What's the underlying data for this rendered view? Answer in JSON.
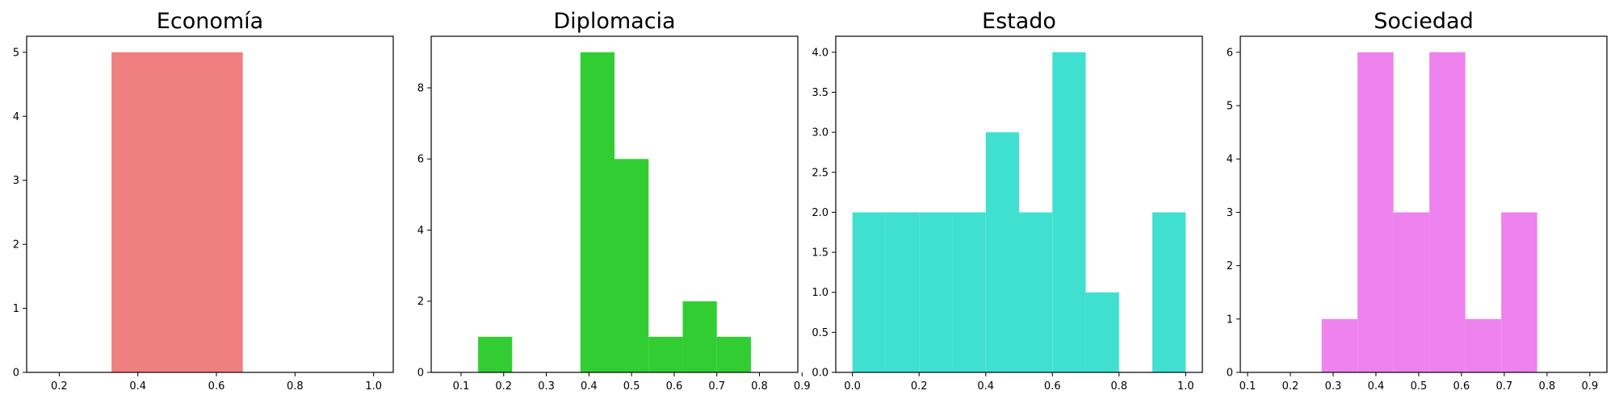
{
  "chart_data": [
    {
      "type": "bar",
      "title": "Economía",
      "color": "#F08080",
      "bins": [
        {
          "x0": 0.333,
          "x1": 0.667,
          "count": 5
        }
      ],
      "xlim": [
        0.117,
        1.05
      ],
      "ylim": [
        0,
        5.25
      ],
      "xticks": [
        0.2,
        0.4,
        0.6,
        0.8,
        1.0
      ],
      "xtick_labels": [
        "0.2",
        "0.4",
        "0.6",
        "0.8",
        "1.0"
      ],
      "yticks": [
        0,
        1,
        2,
        3,
        4,
        5
      ],
      "ytick_labels": [
        "0",
        "1",
        "2",
        "3",
        "4",
        "5"
      ]
    },
    {
      "type": "bar",
      "title": "Diplomacia",
      "color": "#32CD32",
      "bins": [
        {
          "x0": 0.14,
          "x1": 0.22,
          "count": 1
        },
        {
          "x0": 0.38,
          "x1": 0.46,
          "count": 9
        },
        {
          "x0": 0.46,
          "x1": 0.54,
          "count": 6
        },
        {
          "x0": 0.54,
          "x1": 0.62,
          "count": 1
        },
        {
          "x0": 0.62,
          "x1": 0.7,
          "count": 2
        },
        {
          "x0": 0.7,
          "x1": 0.78,
          "count": 1
        }
      ],
      "xlim": [
        0.03,
        0.89
      ],
      "ylim": [
        0,
        9.45
      ],
      "xticks": [
        0.1,
        0.2,
        0.3,
        0.4,
        0.5,
        0.6,
        0.7,
        0.8,
        0.9
      ],
      "xtick_labels": [
        "0.1",
        "0.2",
        "0.3",
        "0.4",
        "0.5",
        "0.6",
        "0.7",
        "0.8",
        "0.9"
      ],
      "yticks": [
        0,
        2,
        4,
        6,
        8
      ],
      "ytick_labels": [
        "0",
        "2",
        "4",
        "6",
        "8"
      ]
    },
    {
      "type": "bar",
      "title": "Estado",
      "color": "#40E0D0",
      "bins": [
        {
          "x0": 0.0,
          "x1": 0.1,
          "count": 2
        },
        {
          "x0": 0.1,
          "x1": 0.2,
          "count": 2
        },
        {
          "x0": 0.2,
          "x1": 0.3,
          "count": 2
        },
        {
          "x0": 0.3,
          "x1": 0.4,
          "count": 2
        },
        {
          "x0": 0.4,
          "x1": 0.5,
          "count": 3
        },
        {
          "x0": 0.5,
          "x1": 0.6,
          "count": 2
        },
        {
          "x0": 0.6,
          "x1": 0.7,
          "count": 4
        },
        {
          "x0": 0.7,
          "x1": 0.8,
          "count": 1
        },
        {
          "x0": 0.9,
          "x1": 1.0,
          "count": 2
        }
      ],
      "xlim": [
        -0.05,
        1.05
      ],
      "ylim": [
        0,
        4.2
      ],
      "xticks": [
        0.0,
        0.2,
        0.4,
        0.6,
        0.8,
        1.0
      ],
      "xtick_labels": [
        "0.0",
        "0.2",
        "0.4",
        "0.6",
        "0.8",
        "1.0"
      ],
      "yticks": [
        0,
        0.5,
        1.0,
        1.5,
        2.0,
        2.5,
        3.0,
        3.5,
        4.0
      ],
      "ytick_labels": [
        "0.0",
        "0.5",
        "1.0",
        "1.5",
        "2.0",
        "2.5",
        "3.0",
        "3.5",
        "4.0"
      ]
    },
    {
      "type": "bar",
      "title": "Sociedad",
      "color": "#EE82EE",
      "bins": [
        {
          "x0": 0.273,
          "x1": 0.357,
          "count": 1
        },
        {
          "x0": 0.357,
          "x1": 0.441,
          "count": 6
        },
        {
          "x0": 0.441,
          "x1": 0.525,
          "count": 3
        },
        {
          "x0": 0.525,
          "x1": 0.609,
          "count": 6
        },
        {
          "x0": 0.609,
          "x1": 0.693,
          "count": 1
        },
        {
          "x0": 0.693,
          "x1": 0.777,
          "count": 3
        }
      ],
      "xlim": [
        0.083,
        0.94
      ],
      "ylim": [
        0,
        6.3
      ],
      "xticks": [
        0.1,
        0.2,
        0.3,
        0.4,
        0.5,
        0.6,
        0.7,
        0.8,
        0.9
      ],
      "xtick_labels": [
        "0.1",
        "0.2",
        "0.3",
        "0.4",
        "0.5",
        "0.6",
        "0.7",
        "0.8",
        "0.9"
      ],
      "yticks": [
        0,
        1,
        2,
        3,
        4,
        5,
        6
      ],
      "ytick_labels": [
        "0",
        "1",
        "2",
        "3",
        "4",
        "5",
        "6"
      ]
    }
  ]
}
